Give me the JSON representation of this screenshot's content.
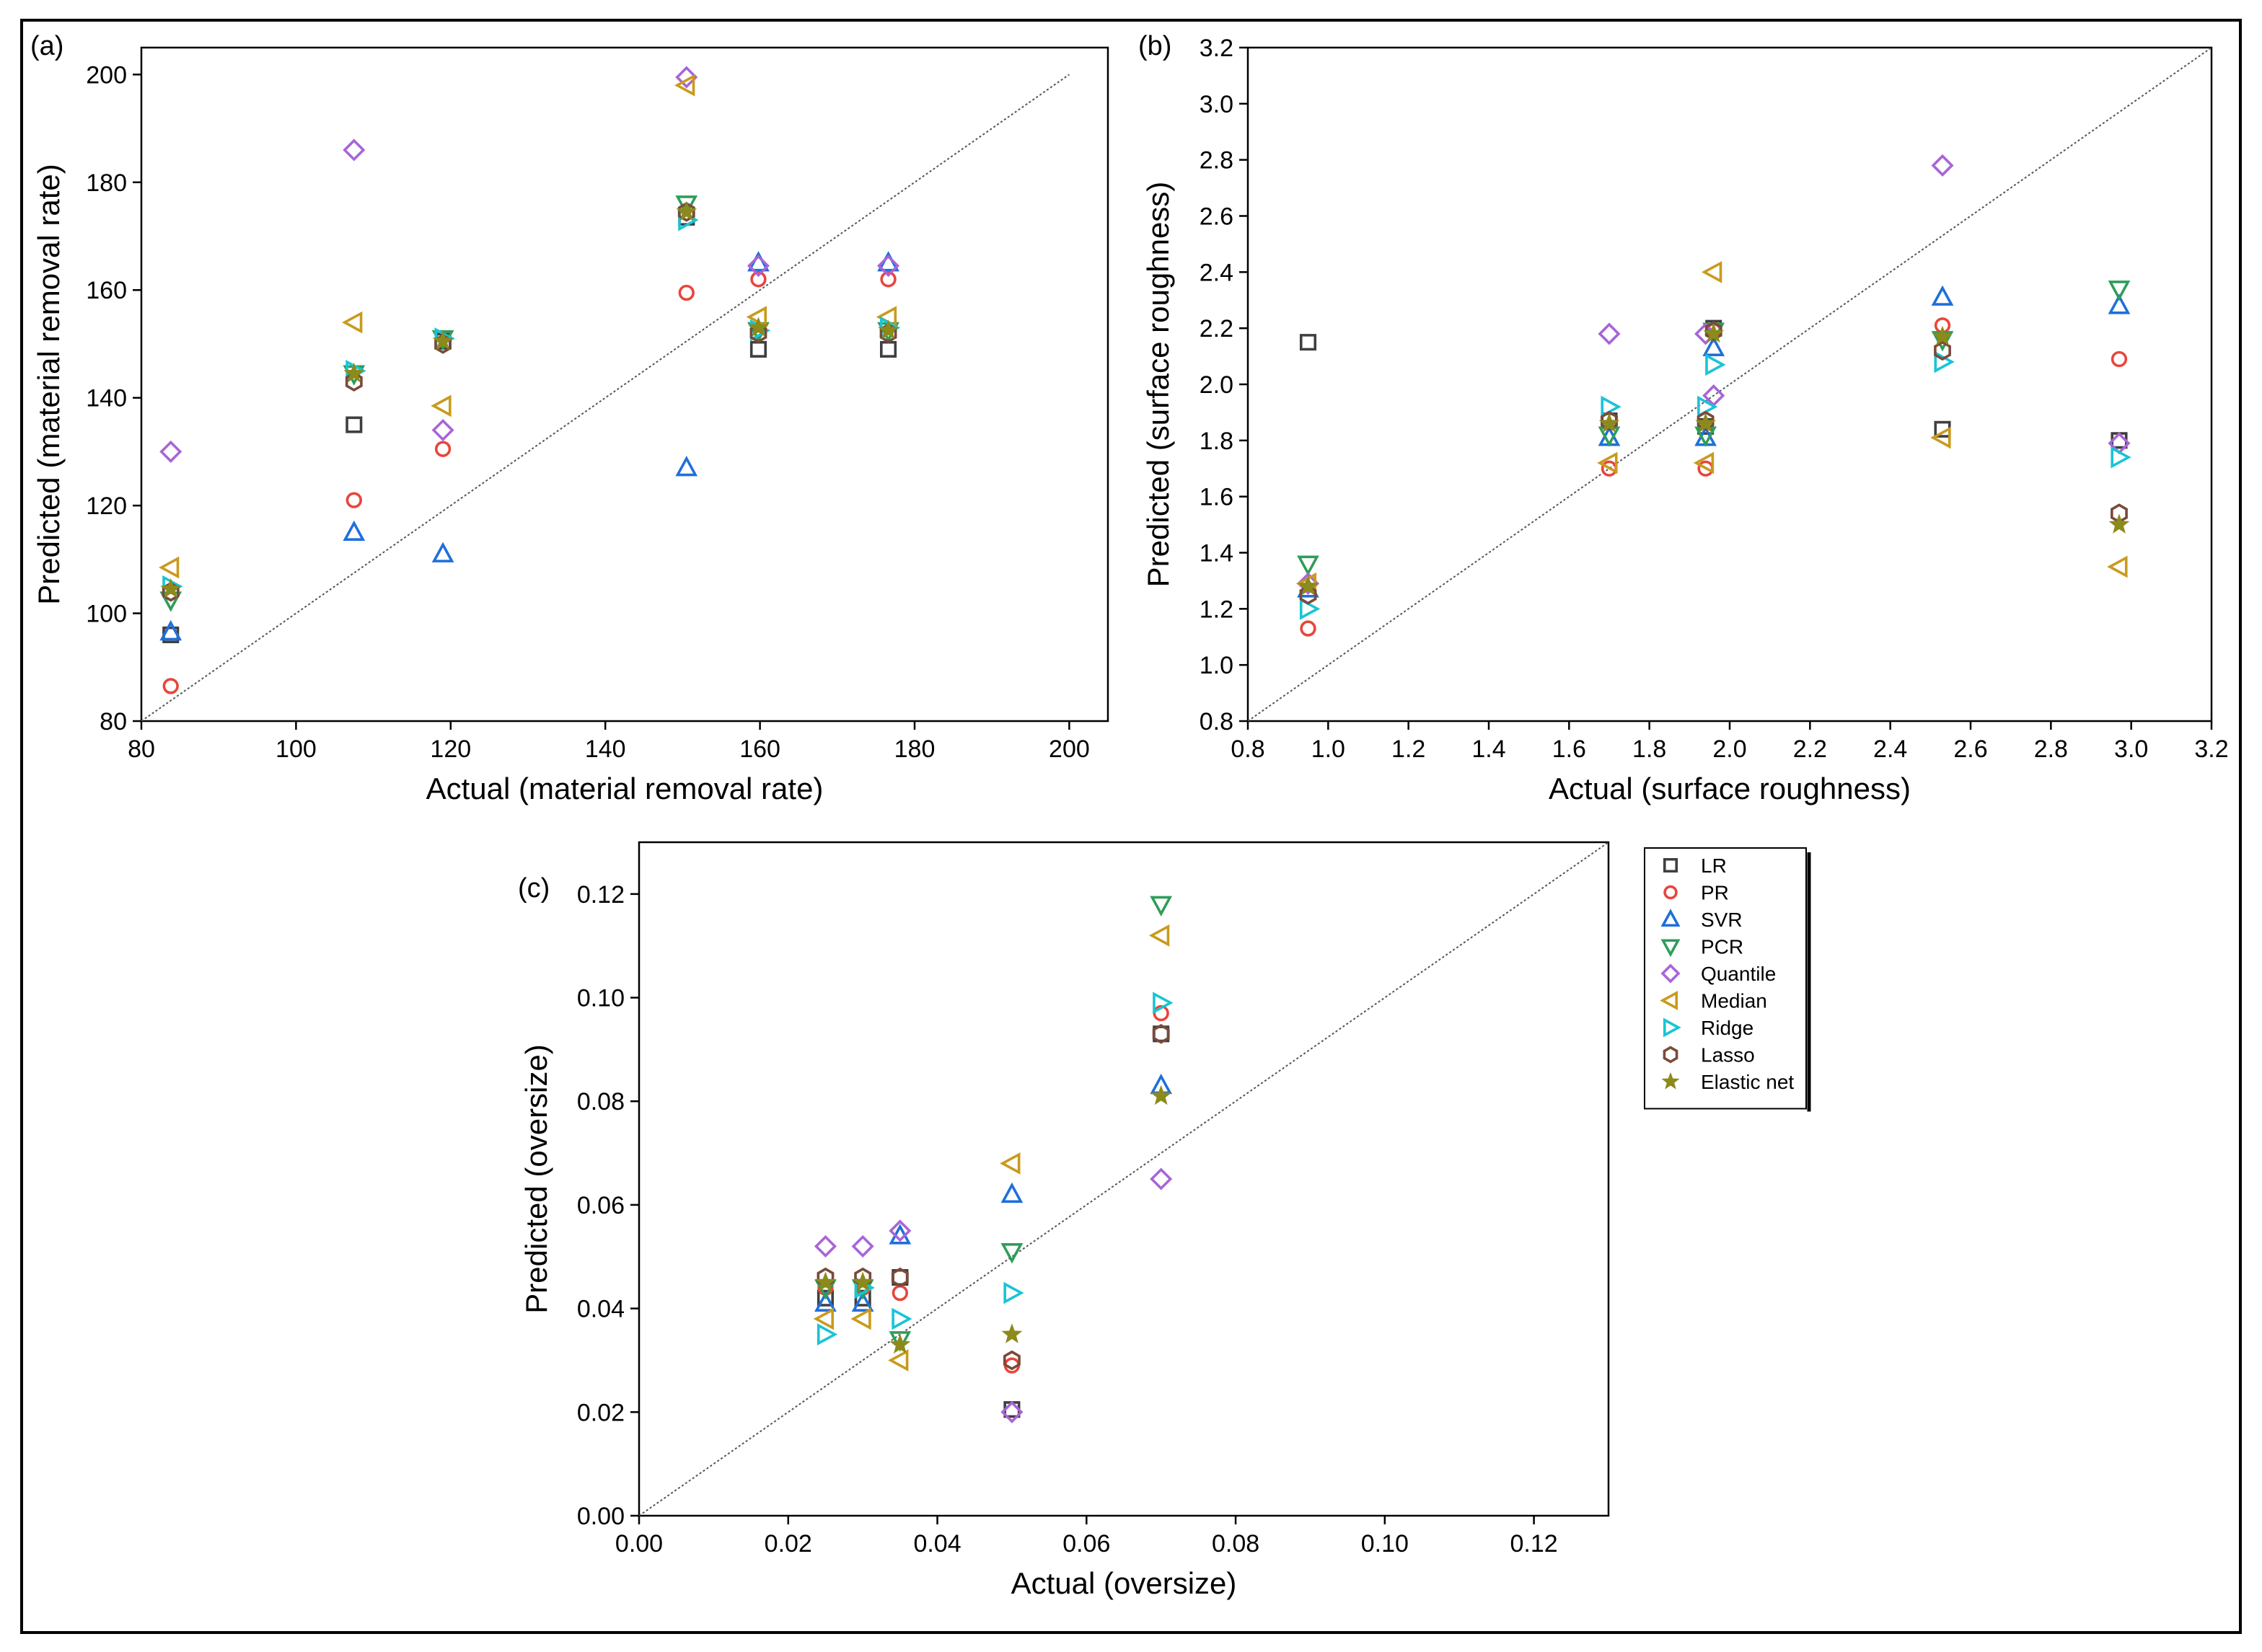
{
  "series_style": [
    {
      "name": "LR",
      "marker": "square",
      "color": "#3f3f3f"
    },
    {
      "name": "PR",
      "marker": "circle",
      "color": "#e8453c"
    },
    {
      "name": "SVR",
      "marker": "triangle-up",
      "color": "#1f6fdb"
    },
    {
      "name": "PCR",
      "marker": "triangle-down",
      "color": "#2e9e58"
    },
    {
      "name": "Quantile",
      "marker": "diamond",
      "color": "#a865d6"
    },
    {
      "name": "Median",
      "marker": "triangle-left",
      "color": "#c99a1c"
    },
    {
      "name": "Ridge",
      "marker": "triangle-right",
      "color": "#19c4d6"
    },
    {
      "name": "Lasso",
      "marker": "hexagon",
      "color": "#7a4a3a"
    },
    {
      "name": "Elastic net",
      "marker": "star",
      "color": "#8c8a1a"
    }
  ],
  "chart_data": [
    {
      "id": "a",
      "type": "scatter",
      "panel_label": "(a)",
      "xlabel": "Actual (material removal rate)",
      "ylabel": "Predicted (material removal rate)",
      "xlim": [
        80,
        205
      ],
      "ylim": [
        80,
        205
      ],
      "xticks": [
        80,
        100,
        120,
        140,
        160,
        180,
        200
      ],
      "yticks": [
        80,
        100,
        120,
        140,
        160,
        180,
        200
      ],
      "tick_decimals": 0,
      "identity_line": [
        80,
        200
      ],
      "x": [
        83.8,
        107.5,
        119,
        150.5,
        159.8,
        176.6
      ],
      "series": [
        {
          "name": "LR",
          "values": [
            96,
            135,
            150.5,
            173.5,
            149,
            149
          ]
        },
        {
          "name": "PR",
          "values": [
            86.5,
            121,
            130.5,
            159.5,
            162,
            162
          ]
        },
        {
          "name": "SVR",
          "values": [
            96.5,
            115,
            111,
            127,
            165,
            165
          ]
        },
        {
          "name": "PCR",
          "values": [
            102.5,
            144.5,
            151,
            176,
            152.5,
            152.5
          ]
        },
        {
          "name": "Quantile",
          "values": [
            130,
            186,
            134,
            199.5,
            164.5,
            164.5
          ]
        },
        {
          "name": "Median",
          "values": [
            108.5,
            154,
            138.5,
            198,
            155,
            155
          ]
        },
        {
          "name": "Ridge",
          "values": [
            105,
            145,
            151,
            173,
            152.5,
            153
          ]
        },
        {
          "name": "Lasso",
          "values": [
            104,
            143,
            150,
            174.5,
            152,
            152
          ]
        },
        {
          "name": "Elastic net",
          "values": [
            104.5,
            144.5,
            150.5,
            174.5,
            153,
            152.5
          ]
        }
      ]
    },
    {
      "id": "b",
      "type": "scatter",
      "panel_label": "(b)",
      "xlabel": "Actual (surface roughness)",
      "ylabel": "Predicted (surface roughness)",
      "xlim": [
        0.8,
        3.2
      ],
      "ylim": [
        0.8,
        3.2
      ],
      "xticks": [
        0.8,
        1.0,
        1.2,
        1.4,
        1.6,
        1.8,
        2.0,
        2.2,
        2.4,
        2.6,
        2.8,
        3.0,
        3.2
      ],
      "yticks": [
        0.8,
        1.0,
        1.2,
        1.4,
        1.6,
        1.8,
        2.0,
        2.2,
        2.4,
        2.6,
        2.8,
        3.0,
        3.2
      ],
      "tick_decimals": 1,
      "identity_line": [
        0.8,
        3.2
      ],
      "x": [
        0.95,
        1.7,
        1.94,
        1.96,
        2.53,
        2.97
      ],
      "series": [
        {
          "name": "LR",
          "values": [
            2.15,
            1.87,
            1.85,
            2.2,
            1.84,
            1.8
          ]
        },
        {
          "name": "PR",
          "values": [
            1.13,
            1.7,
            1.7,
            2.19,
            2.21,
            2.09
          ]
        },
        {
          "name": "SVR",
          "values": [
            1.27,
            1.81,
            1.81,
            2.13,
            2.31,
            2.28
          ]
        },
        {
          "name": "PCR",
          "values": [
            1.36,
            1.82,
            1.82,
            2.19,
            2.16,
            2.34
          ]
        },
        {
          "name": "Quantile",
          "values": [
            1.29,
            2.18,
            2.18,
            1.96,
            2.78,
            1.79
          ]
        },
        {
          "name": "Median",
          "values": [
            1.29,
            1.72,
            1.72,
            2.4,
            1.81,
            1.35
          ]
        },
        {
          "name": "Ridge",
          "values": [
            1.2,
            1.92,
            1.92,
            2.07,
            2.08,
            1.74
          ]
        },
        {
          "name": "Lasso",
          "values": [
            1.25,
            1.87,
            1.87,
            2.19,
            2.12,
            1.54
          ]
        },
        {
          "name": "Elastic net",
          "values": [
            1.28,
            1.86,
            1.86,
            2.18,
            2.17,
            1.5
          ]
        }
      ]
    },
    {
      "id": "c",
      "type": "scatter",
      "panel_label": "(c)",
      "xlabel": "Actual (oversize)",
      "ylabel": "Predicted (oversize)",
      "xlim": [
        0,
        0.13
      ],
      "ylim": [
        0,
        0.13
      ],
      "xticks": [
        0.0,
        0.02,
        0.04,
        0.06,
        0.08,
        0.1,
        0.12
      ],
      "yticks": [
        0.0,
        0.02,
        0.04,
        0.06,
        0.08,
        0.1,
        0.12
      ],
      "tick_decimals": 2,
      "identity_line": [
        0,
        0.13
      ],
      "x": [
        0.025,
        0.03,
        0.035,
        0.05,
        0.07
      ],
      "series": [
        {
          "name": "LR",
          "values": [
            0.042,
            0.042,
            0.046,
            0.0205,
            0.093
          ]
        },
        {
          "name": "PR",
          "values": [
            0.044,
            0.044,
            0.043,
            0.029,
            0.097
          ]
        },
        {
          "name": "SVR",
          "values": [
            0.041,
            0.041,
            0.054,
            0.062,
            0.083
          ]
        },
        {
          "name": "PCR",
          "values": [
            0.044,
            0.044,
            0.034,
            0.051,
            0.118
          ]
        },
        {
          "name": "Quantile",
          "values": [
            0.052,
            0.052,
            0.055,
            0.02,
            0.065
          ]
        },
        {
          "name": "Median",
          "values": [
            0.038,
            0.038,
            0.03,
            0.068,
            0.112
          ]
        },
        {
          "name": "Ridge",
          "values": [
            0.035,
            0.044,
            0.038,
            0.043,
            0.099
          ]
        },
        {
          "name": "Lasso",
          "values": [
            0.046,
            0.046,
            0.046,
            0.03,
            0.093
          ]
        },
        {
          "name": "Elastic net",
          "values": [
            0.045,
            0.045,
            0.033,
            0.035,
            0.081
          ]
        }
      ]
    }
  ]
}
